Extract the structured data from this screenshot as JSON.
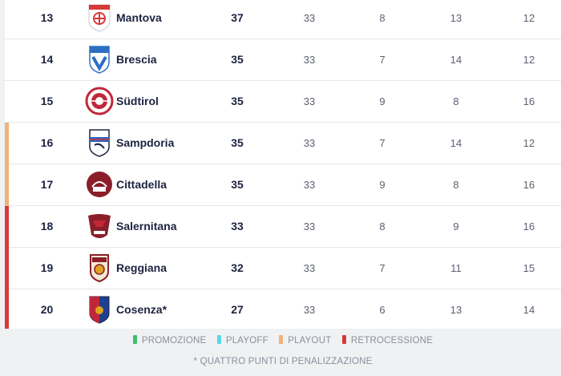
{
  "colors": {
    "promozione": "#3fbf6b",
    "playoff": "#5ad8e6",
    "playout": "#f0b27a",
    "retrocessione": "#d63a3a"
  },
  "rows": [
    {
      "pos": "13",
      "team": "Mantova",
      "pts": "37",
      "g": "33",
      "a": "8",
      "b": "13",
      "c": "12",
      "zone": "",
      "logo": "mantova-logo"
    },
    {
      "pos": "14",
      "team": "Brescia",
      "pts": "35",
      "g": "33",
      "a": "7",
      "b": "14",
      "c": "12",
      "zone": "",
      "logo": "brescia-logo"
    },
    {
      "pos": "15",
      "team": "Südtirol",
      "pts": "35",
      "g": "33",
      "a": "9",
      "b": "8",
      "c": "16",
      "zone": "",
      "logo": "sudtirol-logo"
    },
    {
      "pos": "16",
      "team": "Sampdoria",
      "pts": "35",
      "g": "33",
      "a": "7",
      "b": "14",
      "c": "12",
      "zone": "playout",
      "logo": "sampdoria-logo"
    },
    {
      "pos": "17",
      "team": "Cittadella",
      "pts": "35",
      "g": "33",
      "a": "9",
      "b": "8",
      "c": "16",
      "zone": "playout",
      "logo": "cittadella-logo"
    },
    {
      "pos": "18",
      "team": "Salernitana",
      "pts": "33",
      "g": "33",
      "a": "8",
      "b": "9",
      "c": "16",
      "zone": "retrocessione",
      "logo": "salernitana-logo"
    },
    {
      "pos": "19",
      "team": "Reggiana",
      "pts": "32",
      "g": "33",
      "a": "7",
      "b": "11",
      "c": "15",
      "zone": "retrocessione",
      "logo": "reggiana-logo"
    },
    {
      "pos": "20",
      "team": "Cosenza*",
      "pts": "27",
      "g": "33",
      "a": "6",
      "b": "13",
      "c": "14",
      "zone": "retrocessione",
      "logo": "cosenza-logo"
    }
  ],
  "legend": {
    "promozione": "PROMOZIONE",
    "playoff": "PLAYOFF",
    "playout": "PLAYOUT",
    "retrocessione": "RETROCESSIONE"
  },
  "note": "* QUATTRO PUNTI DI PENALIZZAZIONE"
}
